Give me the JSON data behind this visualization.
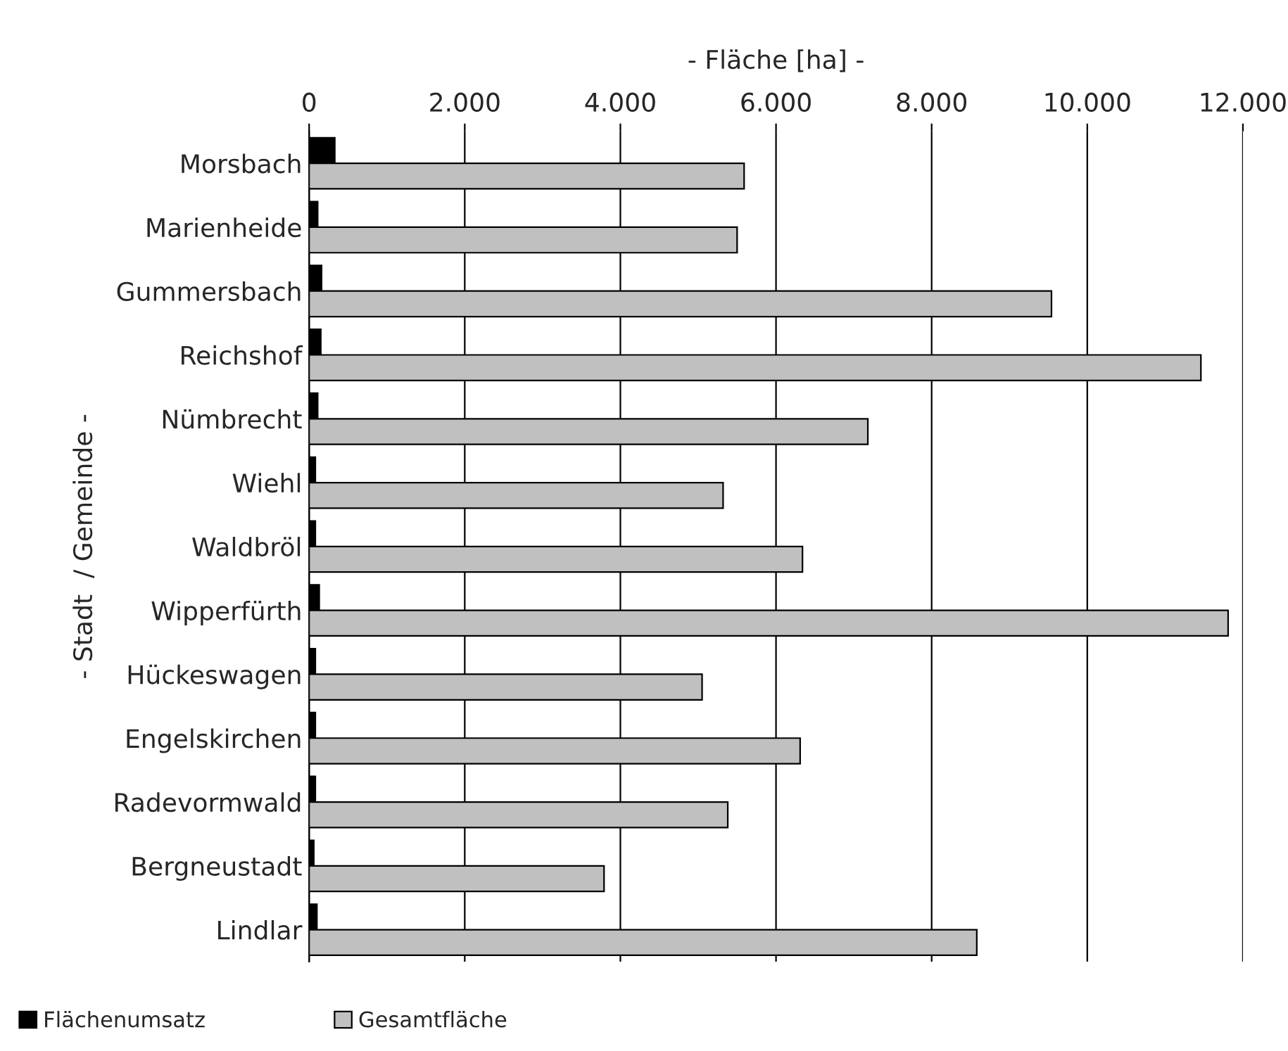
{
  "chart_data": {
    "type": "bar",
    "orientation": "horizontal",
    "xlabel": "- Fläche [ha] -",
    "ylabel": "- Stadt  / Gemeinde -",
    "categories": [
      "Morsbach",
      "Marienheide",
      "Gummersbach",
      "Reichshof",
      "Nümbrecht",
      "Wiehl",
      "Waldbröl",
      "Wipperfürth",
      "Hückeswagen",
      "Engelskirchen",
      "Radevormwald",
      "Bergneustadt",
      "Lindlar"
    ],
    "series": [
      {
        "name": "Flächenumsatz",
        "color": "#000000",
        "values": [
          330,
          110,
          160,
          150,
          110,
          80,
          80,
          130,
          80,
          80,
          80,
          60,
          100
        ]
      },
      {
        "name": "Gesamtfläche",
        "color": "#c0c0c0",
        "values": [
          5590,
          5500,
          9540,
          11460,
          7180,
          5320,
          6340,
          11810,
          5050,
          6310,
          5380,
          3790,
          8580
        ]
      }
    ],
    "xlim": [
      0,
      12000
    ],
    "xticks": [
      {
        "value": 0,
        "label": "0"
      },
      {
        "value": 2000,
        "label": "2.000"
      },
      {
        "value": 4000,
        "label": "4.000"
      },
      {
        "value": 6000,
        "label": "6.000"
      },
      {
        "value": 8000,
        "label": "8.000"
      },
      {
        "value": 10000,
        "label": "10.000"
      },
      {
        "value": 12000,
        "label": "12.000"
      }
    ],
    "grid": "x",
    "legend": "bottom left"
  }
}
